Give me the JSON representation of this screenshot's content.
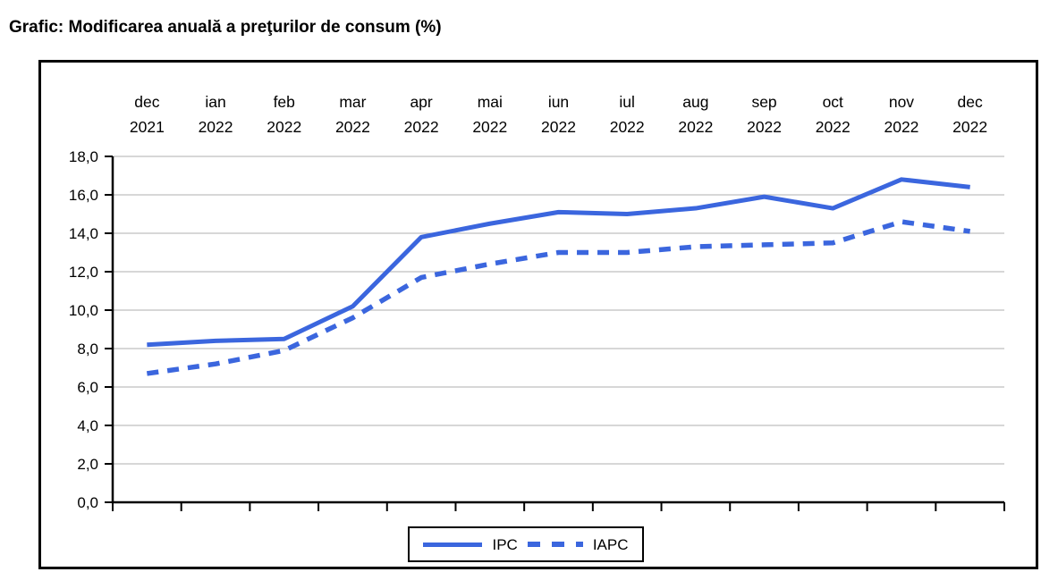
{
  "title": "Grafic: Modificarea anuală a preţurilor de consum (%)",
  "chart_data": {
    "type": "line",
    "title": "Grafic: Modificarea anuală a preţurilor de consum (%)",
    "categories": [
      {
        "month": "dec",
        "year": "2021"
      },
      {
        "month": "ian",
        "year": "2022"
      },
      {
        "month": "feb",
        "year": "2022"
      },
      {
        "month": "mar",
        "year": "2022"
      },
      {
        "month": "apr",
        "year": "2022"
      },
      {
        "month": "mai",
        "year": "2022"
      },
      {
        "month": "iun",
        "year": "2022"
      },
      {
        "month": "iul",
        "year": "2022"
      },
      {
        "month": "aug",
        "year": "2022"
      },
      {
        "month": "sep",
        "year": "2022"
      },
      {
        "month": "oct",
        "year": "2022"
      },
      {
        "month": "nov",
        "year": "2022"
      },
      {
        "month": "dec",
        "year": "2022"
      }
    ],
    "series": [
      {
        "name": "IPC",
        "style": "solid",
        "values": [
          8.2,
          8.4,
          8.5,
          10.2,
          13.8,
          14.5,
          15.1,
          15.0,
          15.3,
          15.9,
          15.3,
          16.8,
          16.4
        ]
      },
      {
        "name": "IAPC",
        "style": "dashed",
        "values": [
          6.7,
          7.2,
          7.9,
          9.6,
          11.7,
          12.4,
          13.0,
          13.0,
          13.3,
          13.4,
          13.5,
          14.6,
          14.1
        ]
      }
    ],
    "y_axis": {
      "min": 0,
      "max": 18,
      "step": 2,
      "tick_labels": [
        "0,0",
        "2,0",
        "4,0",
        "6,0",
        "8,0",
        "10,0",
        "12,0",
        "14,0",
        "16,0",
        "18,0"
      ]
    },
    "x_axis": {
      "label_rows": 2
    },
    "grid": true,
    "legend_position": "bottom-center",
    "colors": {
      "series_line": "#3b66de",
      "gridline": "#bfbfbf",
      "axis": "#000000",
      "text": "#000000",
      "frame_border": "#000000",
      "background": "#ffffff"
    }
  }
}
